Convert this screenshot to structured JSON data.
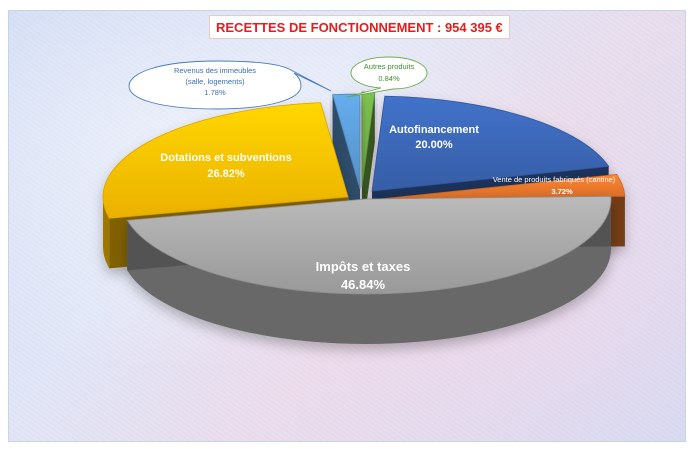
{
  "chart_data": {
    "type": "pie",
    "title": "RECETTES DE FONCTIONNEMENT : 954 395 €",
    "slices": [
      {
        "label": "Autofinancement",
        "value": 20.0,
        "display": "20.00%",
        "color": "#3b66b4"
      },
      {
        "label": "Vente de produits fabriqués (cantine)",
        "value": 3.72,
        "display": "3.72%",
        "color": "#e9772c"
      },
      {
        "label": "Impôts et taxes",
        "value": 46.84,
        "display": "46.84%",
        "color": "#a6a6a6"
      },
      {
        "label": "Dotations et subventions",
        "value": 26.82,
        "display": "26.82%",
        "color": "#ffc000"
      },
      {
        "label": "Revenus des immeubles (salle, logements)",
        "value": 1.78,
        "display": "1.78%",
        "color": "#5b9bd5"
      },
      {
        "label": "Autres produits",
        "value": 0.84,
        "display": "0.84%",
        "color": "#70ad47"
      }
    ],
    "callouts": {
      "revenus_line1": "Revenus des immeubles",
      "revenus_line2": "(salle, logements)",
      "revenus_value": "1.78%",
      "autres_line1": "Autres produits",
      "autres_value": "0.84%"
    },
    "vente_label": "Vente de produits fabriqués (cantine)",
    "dotations_line1": "Dotations et subventions"
  }
}
